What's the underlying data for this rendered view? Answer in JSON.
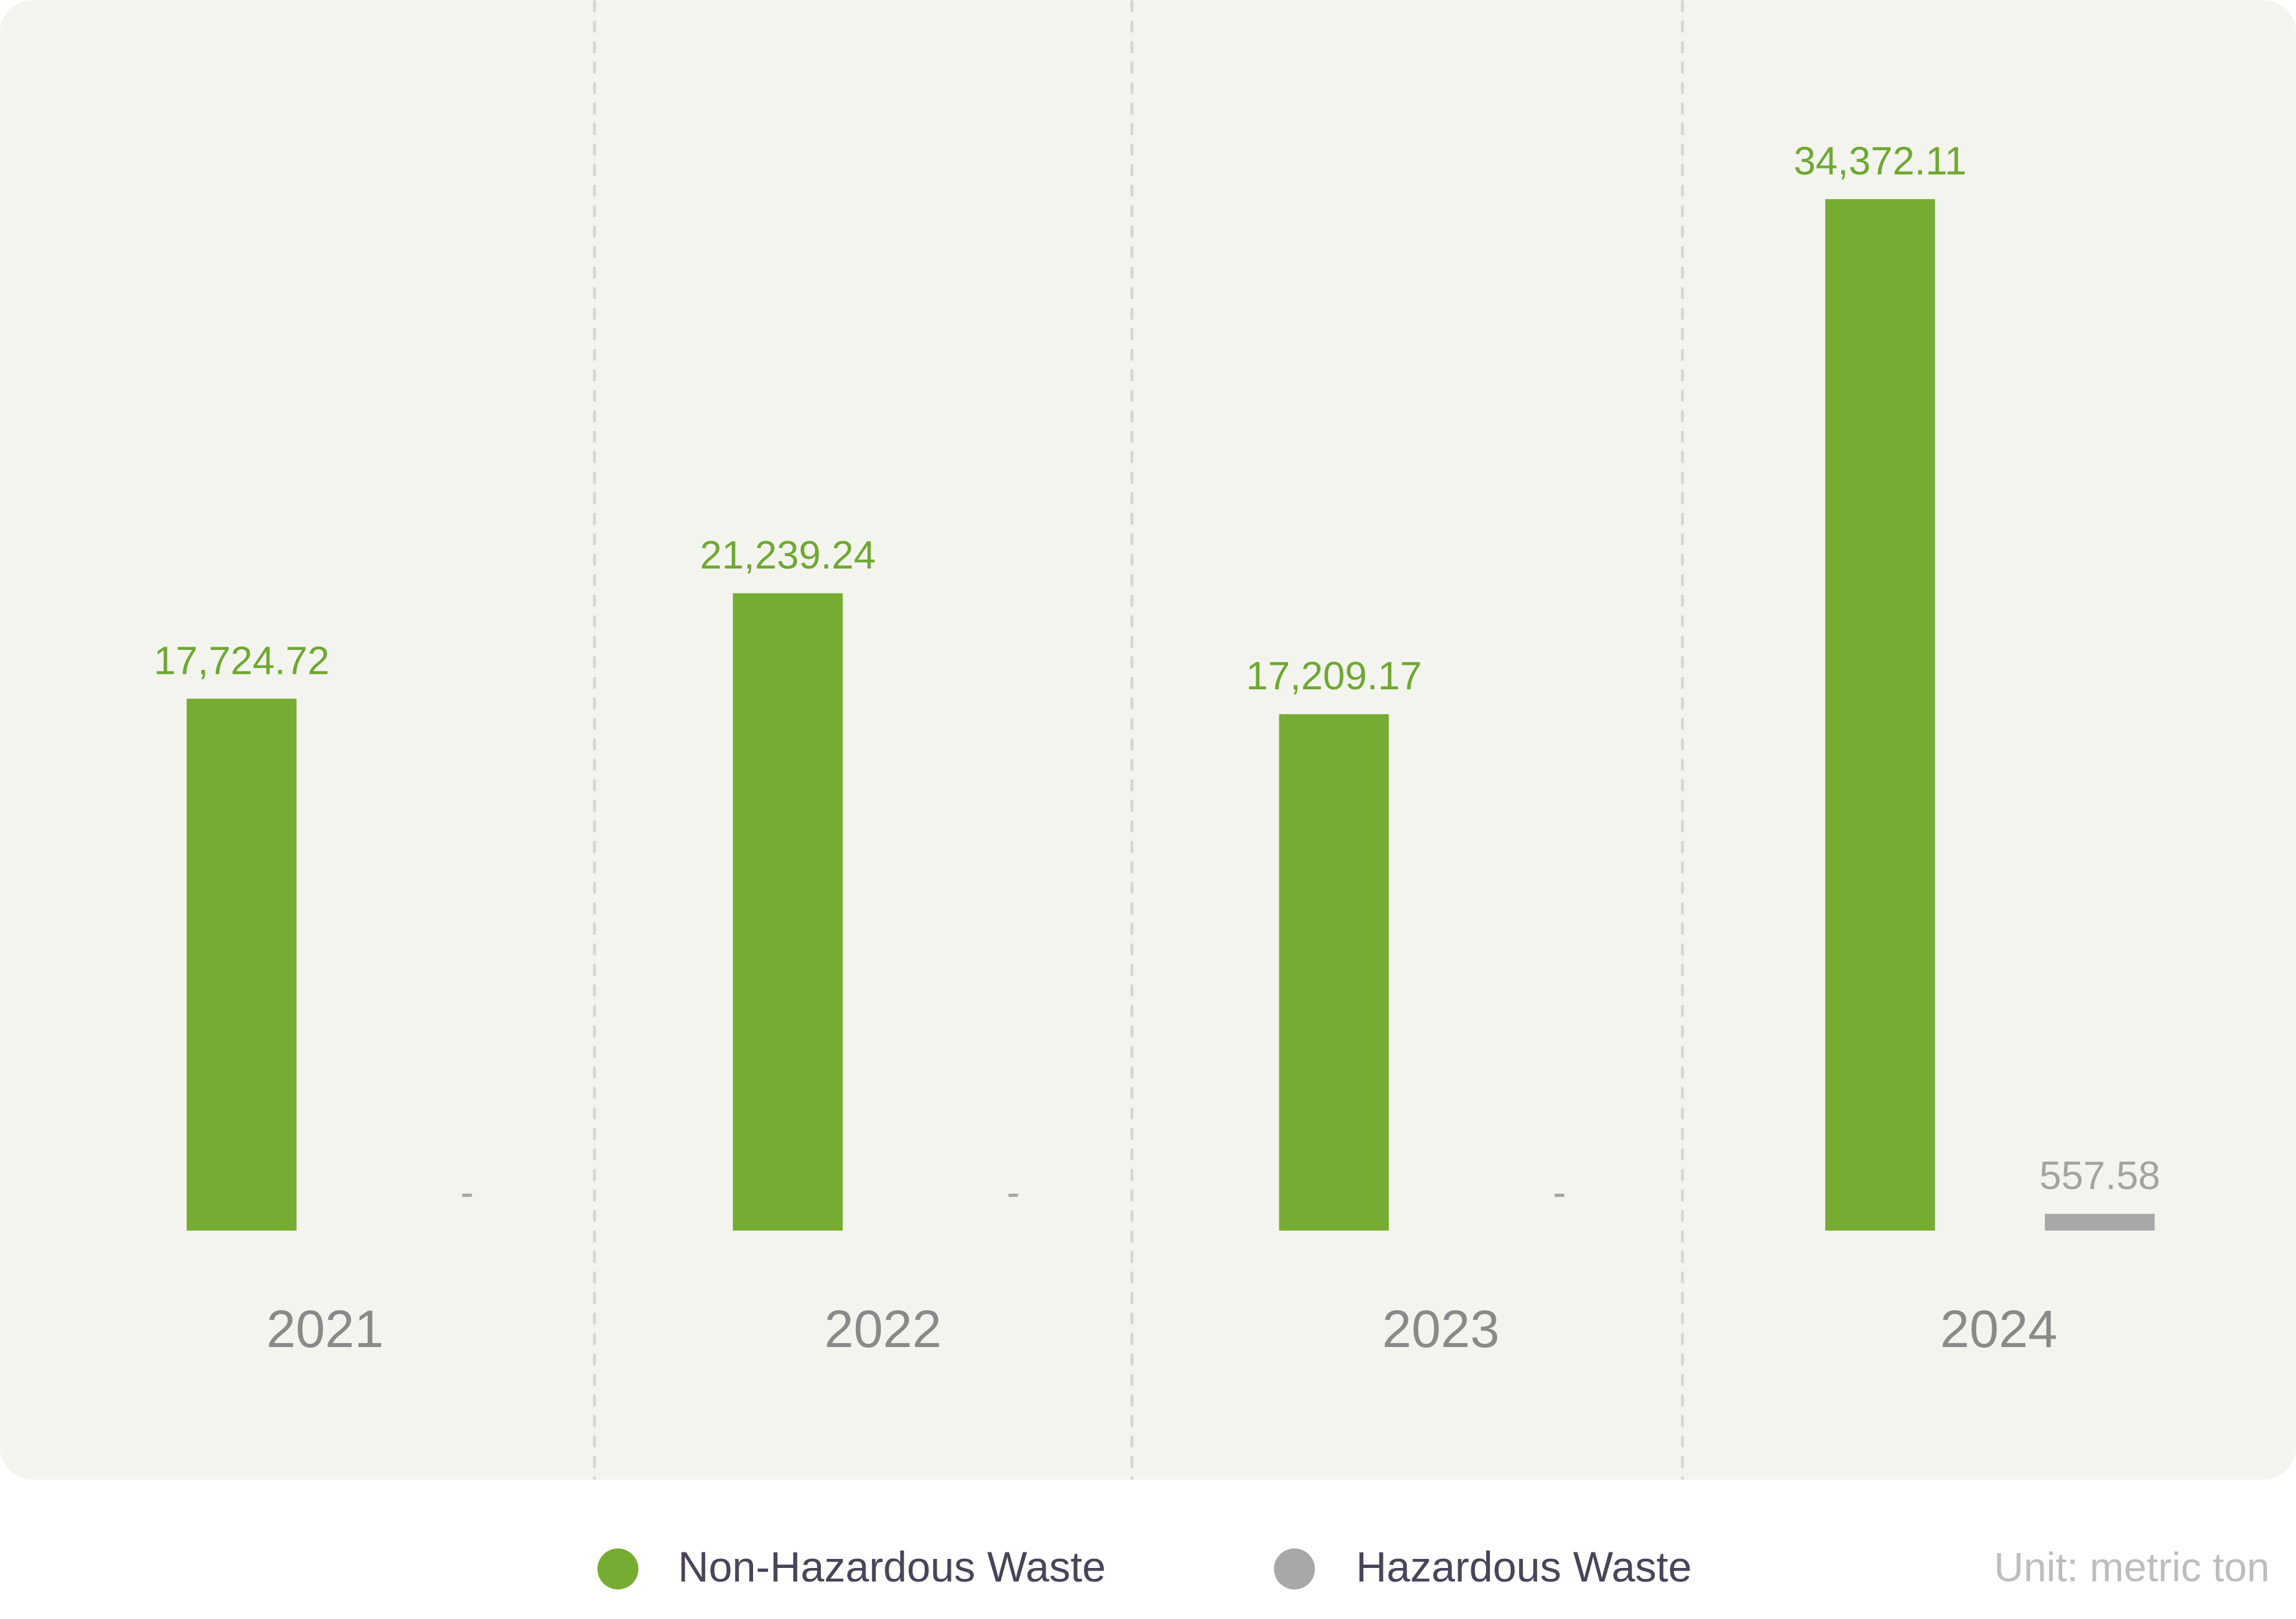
{
  "chart_data": {
    "type": "bar",
    "categories": [
      "2021",
      "2022",
      "2023",
      "2024"
    ],
    "series": [
      {
        "name": "Non-Hazardous Waste",
        "color": "#76ac32",
        "values": [
          17724.72,
          21239.24,
          17209.17,
          34372.11
        ],
        "value_labels": [
          "17,724.72",
          "21,239.24",
          "17,209.17",
          "34,372.11"
        ]
      },
      {
        "name": "Hazardous Waste",
        "color": "#a8a8a8",
        "values": [
          null,
          null,
          null,
          557.58
        ],
        "value_labels": [
          "-",
          "-",
          "-",
          "557.58"
        ]
      }
    ],
    "ylim": [
      0,
      41000
    ],
    "note": "Unit: metric ton"
  }
}
